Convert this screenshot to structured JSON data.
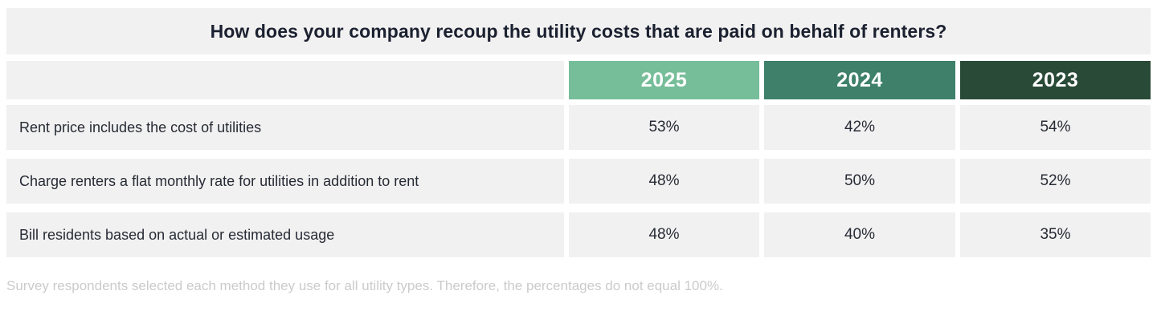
{
  "title": "How does your company recoup the utility costs that are paid on behalf of renters?",
  "footnote": "Survey respondents selected each method they use for all utility types. Therefore, the percentages do not equal 100%.",
  "columns": [
    {
      "label": "2025",
      "color": "#76BE99"
    },
    {
      "label": "2024",
      "color": "#3E8069"
    },
    {
      "label": "2023",
      "color": "#294A37"
    }
  ],
  "rows": [
    {
      "label": "Rent price includes the cost of utilities",
      "values": [
        "53%",
        "42%",
        "54%"
      ]
    },
    {
      "label": "Charge renters a flat monthly rate for utilities in addition to rent",
      "values": [
        "48%",
        "50%",
        "52%"
      ]
    },
    {
      "label": "Bill residents based on actual or estimated usage",
      "values": [
        "48%",
        "40%",
        "35%"
      ]
    }
  ],
  "colors": {
    "cell_background": "#F2F1F1",
    "title_text": "#1B2130",
    "body_text": "#262B35",
    "footnote_text": "#CBCBCD",
    "header_2025": "#76BE99",
    "header_2024": "#3E8069",
    "header_2023": "#294A37"
  },
  "chart_data": {
    "type": "table",
    "title": "How does your company recoup the utility costs that are paid on behalf of renters?",
    "categories": [
      "Rent price includes the cost of utilities",
      "Charge renters a flat monthly rate for utilities in addition to rent",
      "Bill residents based on actual or estimated usage"
    ],
    "series": [
      {
        "name": "2025",
        "values": [
          53,
          48,
          48
        ]
      },
      {
        "name": "2024",
        "values": [
          42,
          50,
          40
        ]
      },
      {
        "name": "2023",
        "values": [
          54,
          52,
          35
        ]
      }
    ],
    "unit": "%",
    "footnote": "Survey respondents selected each method they use for all utility types. Therefore, the percentages do not equal 100%.",
    "legend_position": "top",
    "grid": false
  }
}
